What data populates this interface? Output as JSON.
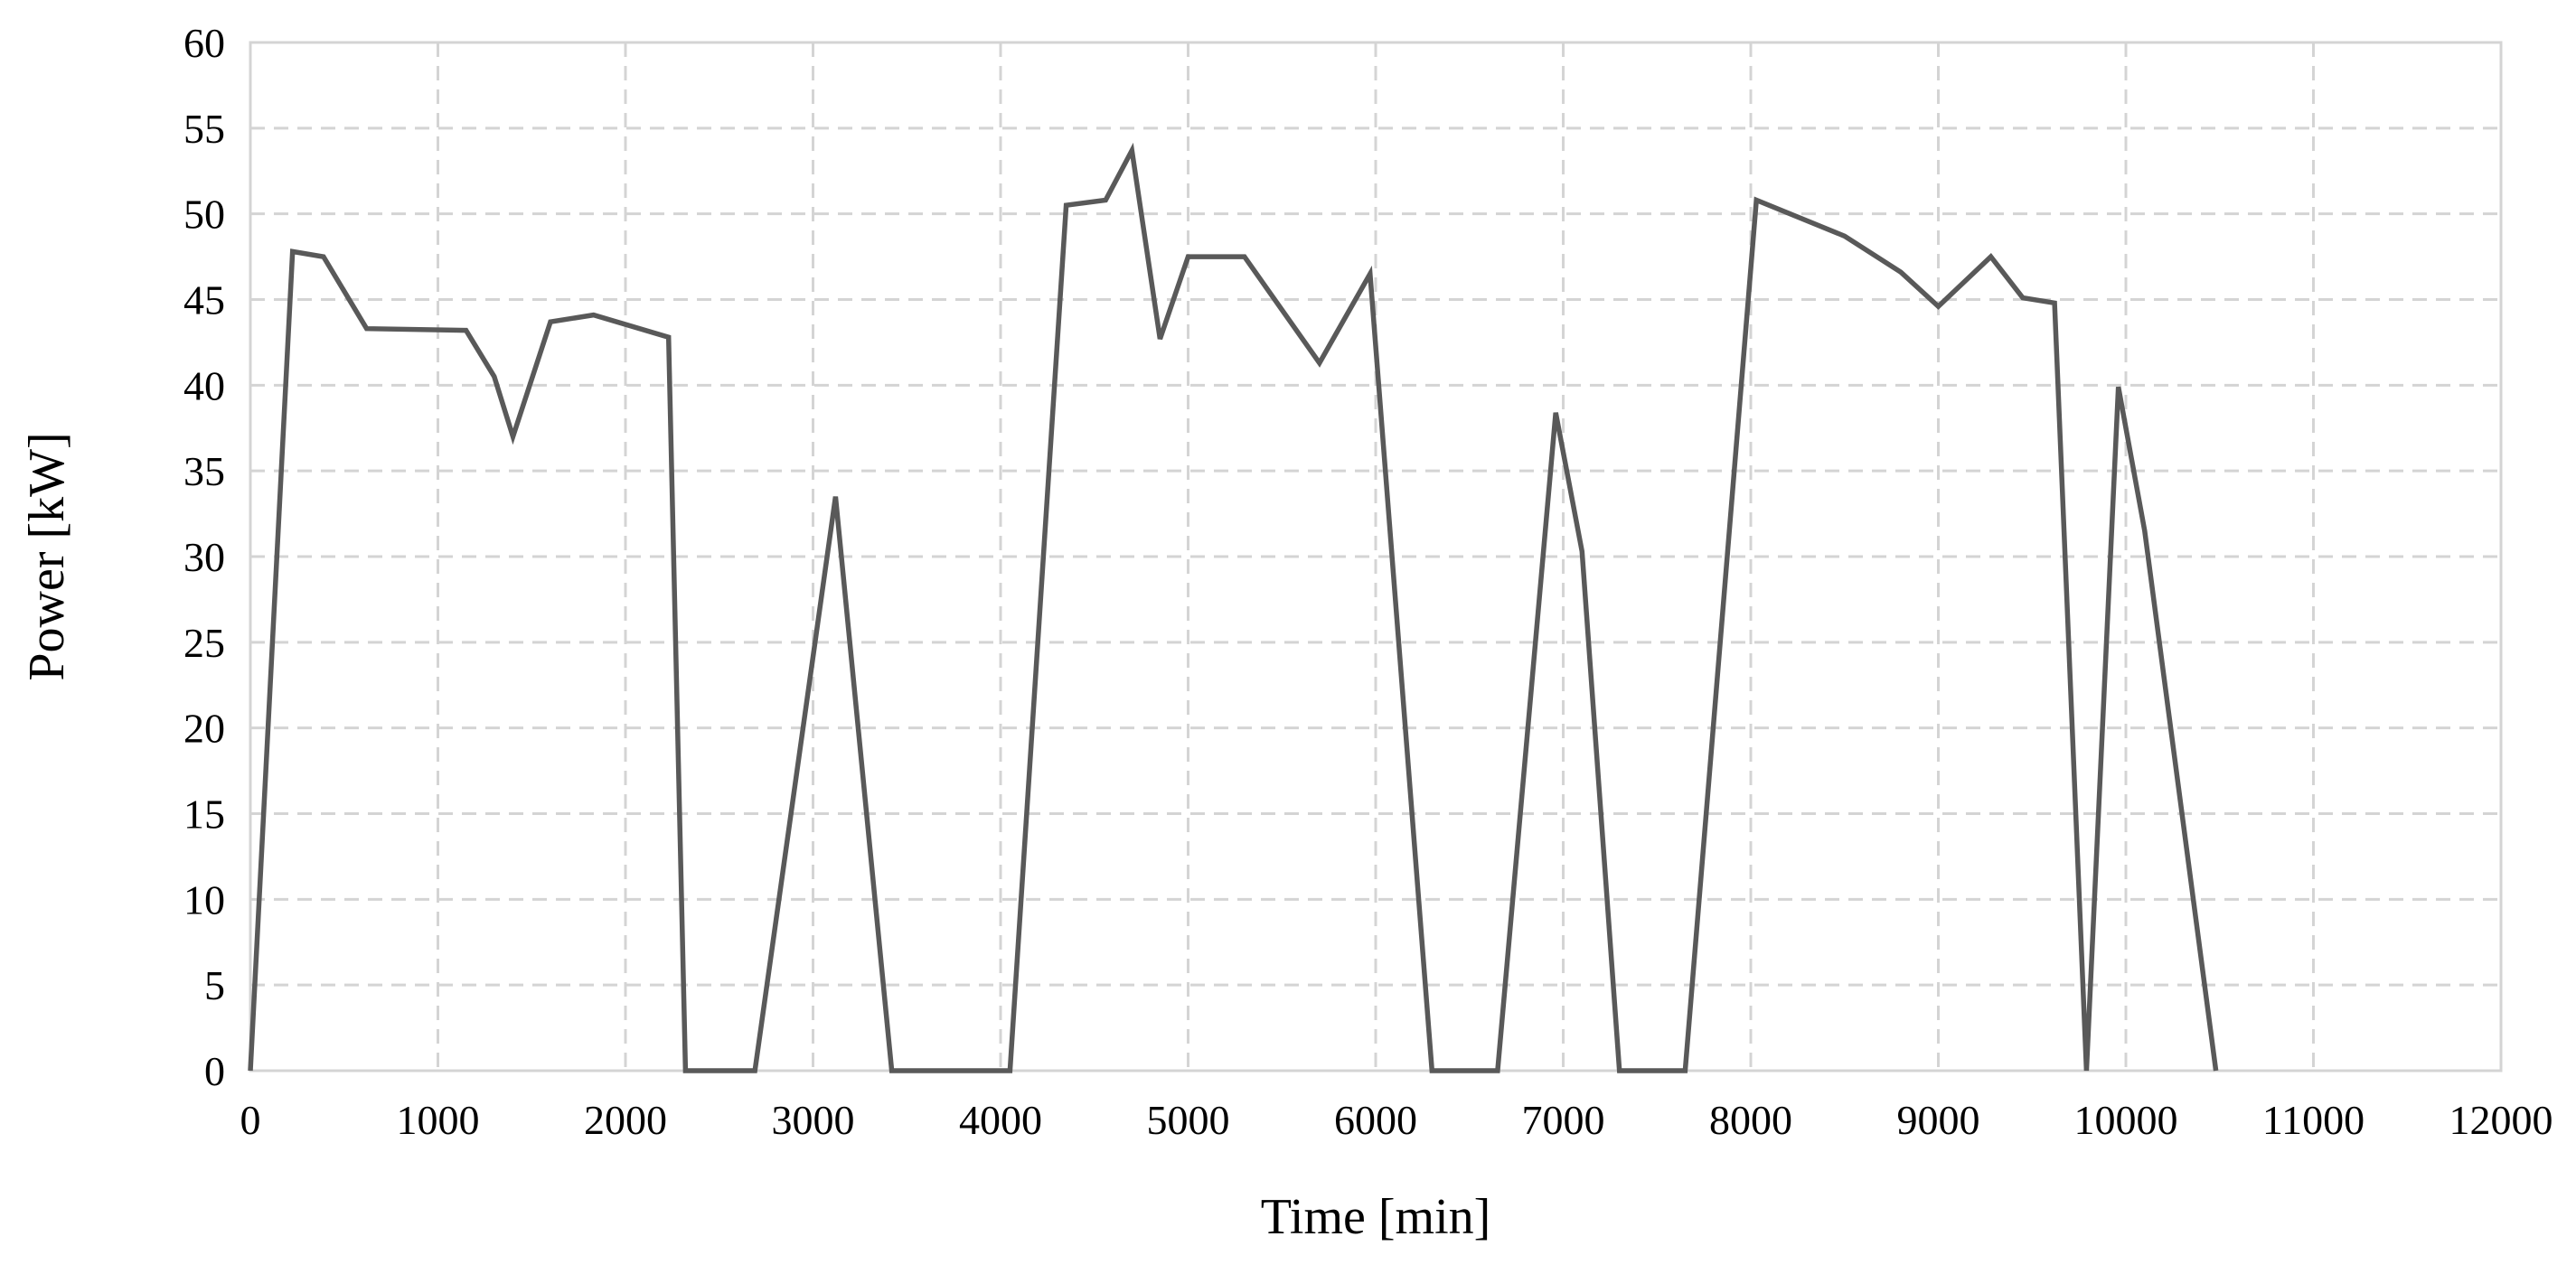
{
  "chart_data": {
    "type": "line",
    "xlabel": "Time [min]",
    "ylabel": "Power [kW]",
    "xlim": [
      0,
      12000
    ],
    "ylim": [
      0,
      60
    ],
    "xticks": [
      0,
      1000,
      2000,
      3000,
      4000,
      5000,
      6000,
      7000,
      8000,
      9000,
      10000,
      11000,
      12000
    ],
    "yticks": [
      0,
      5,
      10,
      15,
      20,
      25,
      30,
      35,
      40,
      45,
      50,
      55,
      60
    ],
    "grid": true,
    "line_color": "#595959",
    "grid_color": "#d4d4d4",
    "series": [
      {
        "x": [
          0,
          225,
          390,
          620,
          1150,
          1300,
          1400,
          1600,
          1830,
          2230,
          2320,
          2690,
          3120,
          3420,
          4050,
          4350,
          4560,
          4700,
          4850,
          5000,
          5300,
          5700,
          5970,
          6300,
          6650,
          6960,
          7100,
          7300,
          7650,
          8030,
          8500,
          8800,
          9000,
          9280,
          9450,
          9620,
          9790,
          9960,
          10100,
          10480
        ],
        "y": [
          0,
          47.8,
          47.5,
          43.3,
          43.2,
          40.5,
          37.0,
          43.7,
          44.1,
          42.8,
          0,
          0,
          33.5,
          0,
          0,
          50.5,
          50.8,
          53.7,
          42.7,
          47.5,
          47.5,
          41.3,
          46.5,
          0,
          0,
          38.4,
          30.3,
          0,
          0,
          50.8,
          48.7,
          46.6,
          44.6,
          47.5,
          45.1,
          44.8,
          0,
          39.9,
          31.5,
          0
        ]
      }
    ]
  }
}
